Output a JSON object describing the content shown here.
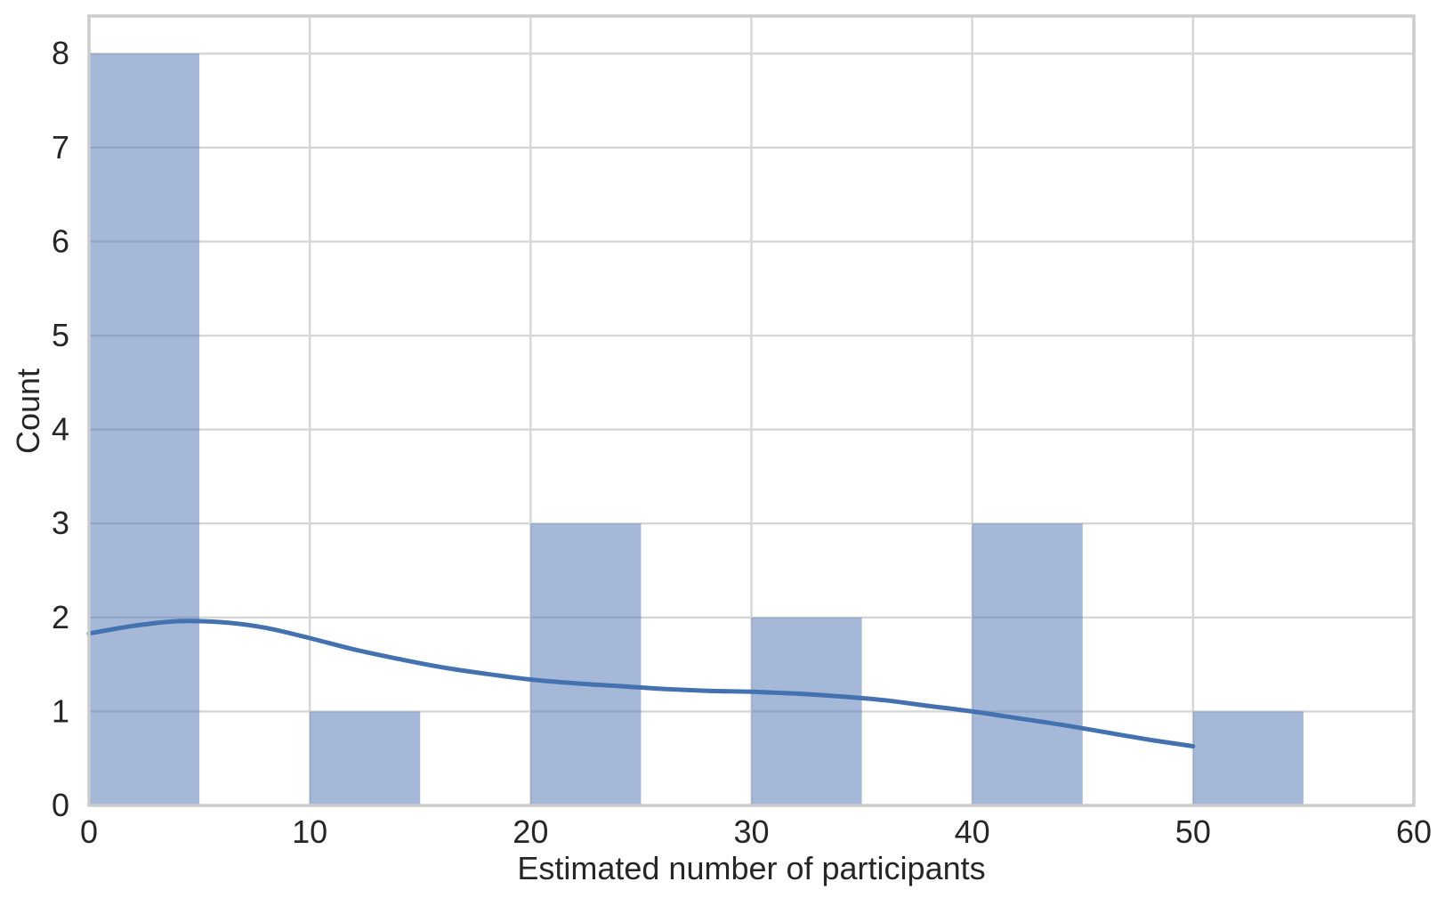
{
  "chart_data": {
    "type": "histogram",
    "title": "",
    "xlabel": "Estimated number of participants",
    "ylabel": "Count",
    "xlim": [
      0,
      60
    ],
    "ylim": [
      0,
      8.4
    ],
    "xticks": [
      0,
      10,
      20,
      30,
      40,
      50,
      60
    ],
    "yticks": [
      0,
      1,
      2,
      3,
      4,
      5,
      6,
      7,
      8
    ],
    "grid": "on",
    "legend_position": "none",
    "bin_width": 5,
    "bins": [
      {
        "range": [
          0,
          5
        ],
        "count": 8
      },
      {
        "range": [
          10,
          15
        ],
        "count": 1
      },
      {
        "range": [
          20,
          25
        ],
        "count": 3
      },
      {
        "range": [
          30,
          35
        ],
        "count": 2
      },
      {
        "range": [
          40,
          45
        ],
        "count": 3
      },
      {
        "range": [
          50,
          55
        ],
        "count": 1
      }
    ],
    "kde": {
      "x": [
        0,
        2,
        4,
        6,
        8,
        10,
        12,
        14,
        16,
        18,
        20,
        22,
        24,
        26,
        28,
        30,
        32,
        34,
        36,
        38,
        40,
        42,
        44,
        46,
        48,
        50
      ],
      "y": [
        1.83,
        1.91,
        1.96,
        1.95,
        1.89,
        1.78,
        1.66,
        1.56,
        1.47,
        1.4,
        1.34,
        1.3,
        1.27,
        1.24,
        1.22,
        1.21,
        1.19,
        1.16,
        1.12,
        1.06,
        1.0,
        0.93,
        0.86,
        0.78,
        0.7,
        0.63
      ]
    },
    "colors": {
      "bar_fill": "#4c72b0",
      "bar_fill_alpha": 0.5,
      "kde_line": "#4472b0",
      "grid": "#d6d6d6",
      "spine": "#cccccc",
      "text": "#262626",
      "background": "#ffffff"
    }
  }
}
